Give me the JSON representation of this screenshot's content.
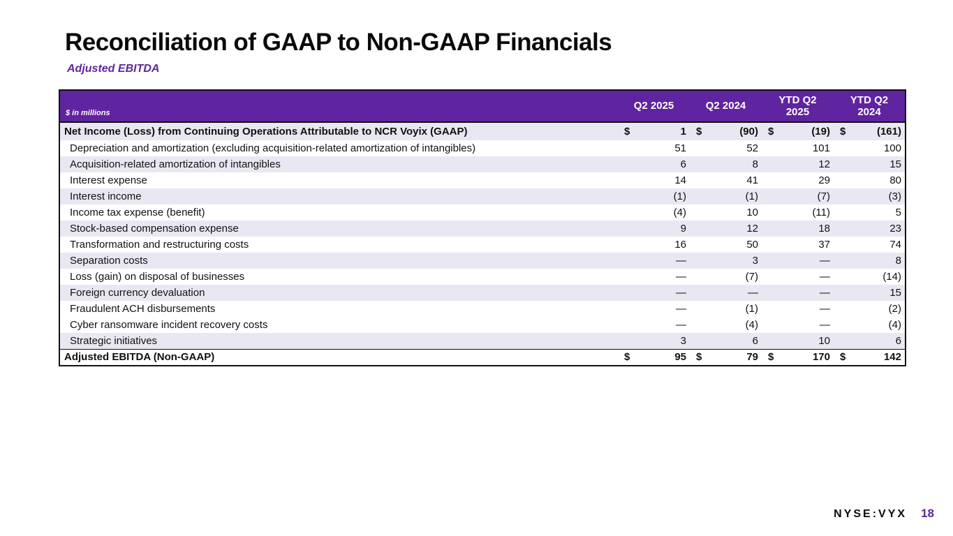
{
  "slide": {
    "title": "Reconciliation of GAAP to Non-GAAP Financials",
    "subtitle": "Adjusted EBITDA",
    "footer": {
      "ticker": "NYSE:VYX",
      "page_number": "18"
    }
  },
  "table": {
    "unit_label": "$ in millions",
    "currency_symbol": "$",
    "columns": [
      "Q2 2025",
      "Q2 2024",
      "YTD Q2\n2025",
      "YTD Q2\n2024"
    ],
    "gaap_row": {
      "label": "Net Income (Loss) from Continuing Operations Attributable to NCR Voyix (GAAP)",
      "values": [
        "1",
        "(90)",
        "(19)",
        "(161)"
      ]
    },
    "rows": [
      {
        "label": "Depreciation and amortization (excluding acquisition-related amortization of intangibles)",
        "values": [
          "51",
          "52",
          "101",
          "100"
        ],
        "shaded": false
      },
      {
        "label": "Acquisition-related amortization of intangibles",
        "values": [
          "6",
          "8",
          "12",
          "15"
        ],
        "shaded": true
      },
      {
        "label": "Interest expense",
        "values": [
          "14",
          "41",
          "29",
          "80"
        ],
        "shaded": false
      },
      {
        "label": "Interest income",
        "values": [
          "(1)",
          "(1)",
          "(7)",
          "(3)"
        ],
        "shaded": true
      },
      {
        "label": "Income tax expense (benefit)",
        "values": [
          "(4)",
          "10",
          "(11)",
          "5"
        ],
        "shaded": false
      },
      {
        "label": "Stock-based compensation expense",
        "values": [
          "9",
          "12",
          "18",
          "23"
        ],
        "shaded": true
      },
      {
        "label": "Transformation and restructuring costs",
        "values": [
          "16",
          "50",
          "37",
          "74"
        ],
        "shaded": false
      },
      {
        "label": "Separation costs",
        "values": [
          "—",
          "3",
          "—",
          "8"
        ],
        "shaded": true
      },
      {
        "label": "Loss (gain) on disposal of businesses",
        "values": [
          "—",
          "(7)",
          "—",
          "(14)"
        ],
        "shaded": false
      },
      {
        "label": "Foreign currency devaluation",
        "values": [
          "—",
          "—",
          "—",
          "15"
        ],
        "shaded": true
      },
      {
        "label": "Fraudulent ACH disbursements",
        "values": [
          "—",
          "(1)",
          "—",
          "(2)"
        ],
        "shaded": false
      },
      {
        "label": "Cyber ransomware incident recovery costs",
        "values": [
          "—",
          "(4)",
          "—",
          "(4)"
        ],
        "shaded": false
      },
      {
        "label": "Strategic initiatives",
        "values": [
          "3",
          "6",
          "10",
          "6"
        ],
        "shaded": true
      }
    ],
    "total_row": {
      "label": "Adjusted EBITDA (Non-GAAP)",
      "values": [
        "95",
        "79",
        "170",
        "142"
      ]
    }
  },
  "colors": {
    "brand_purple": "#5F249F",
    "row_shade": "#E9E8F2"
  }
}
